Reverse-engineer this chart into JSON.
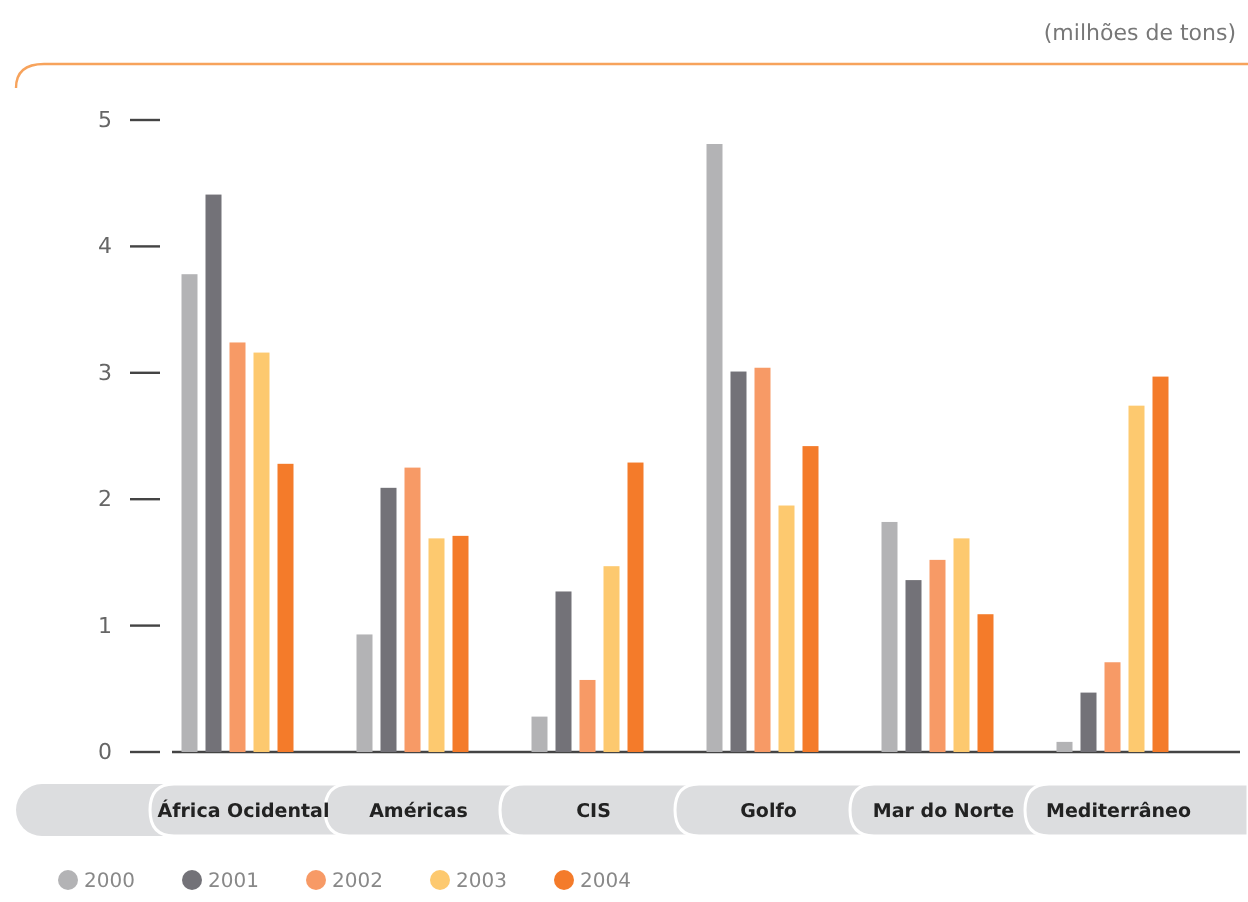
{
  "chart_data": {
    "type": "bar",
    "annotations": [
      "(milhões de tons)"
    ],
    "categories": [
      "África Ocidental",
      "Américas",
      "CIS",
      "Golfo",
      "Mar do Norte",
      "Mediterrâneo"
    ],
    "series": [
      {
        "name": "2000",
        "color": "#b3b3b5",
        "values": [
          3.78,
          0.93,
          0.28,
          4.81,
          1.82,
          0.08
        ]
      },
      {
        "name": "2001",
        "color": "#737278",
        "values": [
          4.41,
          2.09,
          1.27,
          3.01,
          1.36,
          0.47
        ]
      },
      {
        "name": "2002",
        "color": "#f79a66",
        "values": [
          3.24,
          2.25,
          0.57,
          3.04,
          1.52,
          0.71
        ]
      },
      {
        "name": "2003",
        "color": "#fdc96f",
        "values": [
          3.16,
          1.69,
          1.47,
          1.95,
          1.69,
          2.74
        ]
      },
      {
        "name": "2004",
        "color": "#f47b2a",
        "values": [
          2.28,
          1.71,
          2.29,
          2.42,
          1.09,
          2.97
        ]
      }
    ],
    "ylim": [
      0,
      5
    ],
    "yticks": [
      0,
      1,
      2,
      3,
      4,
      5
    ],
    "grid": false,
    "legend": "bottom left"
  }
}
